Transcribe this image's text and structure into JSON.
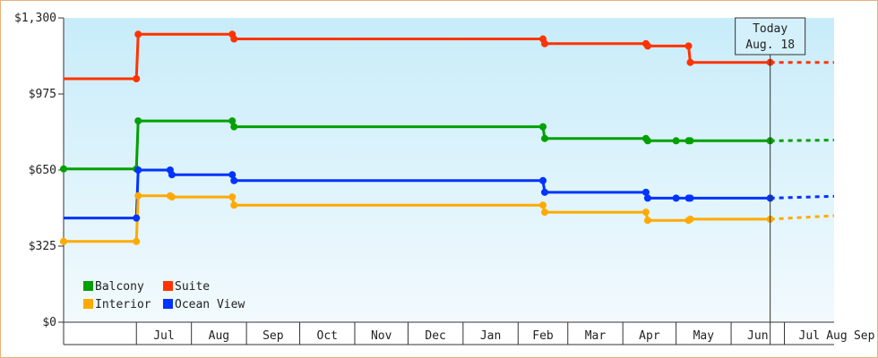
{
  "chart_data": {
    "type": "line",
    "step": true,
    "y_ticks": [
      {
        "value": 0,
        "label": "$0"
      },
      {
        "value": 325,
        "label": "$325"
      },
      {
        "value": 650,
        "label": "$650"
      },
      {
        "value": 975,
        "label": "$975"
      },
      {
        "value": 1300,
        "label": "$1,300"
      }
    ],
    "ylim": [
      0,
      1300
    ],
    "x_months": [
      "Jul",
      "Aug",
      "Sep",
      "Oct",
      "Nov",
      "Dec",
      "Jan",
      "Feb",
      "Mar",
      "Apr",
      "May",
      "Jun",
      "Jul",
      "Aug",
      "Sep"
    ],
    "xlim_days": [
      -45,
      389
    ],
    "today": {
      "line1": "Today",
      "line2": "Aug. 18",
      "day": 353
    },
    "legend": {
      "placement": "bottom-left"
    },
    "series": [
      {
        "name": "Suite",
        "color": "#ff3300",
        "points": [
          [
            -45,
            1040
          ],
          [
            -4,
            1040
          ],
          [
            -3,
            1230
          ],
          [
            50,
            1230
          ],
          [
            51,
            1210
          ],
          [
            225,
            1210
          ],
          [
            226,
            1190
          ],
          [
            283,
            1190
          ],
          [
            284,
            1180
          ],
          [
            307,
            1180
          ],
          [
            308,
            1110
          ],
          [
            353,
            1110
          ]
        ],
        "forecast": [
          [
            353,
            1110
          ],
          [
            389,
            1110
          ]
        ]
      },
      {
        "name": "Balcony",
        "color": "#00a000",
        "points": [
          [
            -45,
            655
          ],
          [
            -4,
            655
          ],
          [
            -3,
            860
          ],
          [
            50,
            860
          ],
          [
            51,
            835
          ],
          [
            225,
            835
          ],
          [
            226,
            785
          ],
          [
            283,
            785
          ],
          [
            284,
            775
          ],
          [
            307,
            775
          ],
          [
            308,
            775
          ],
          [
            353,
            775
          ]
        ],
        "forecast": [
          [
            353,
            775
          ],
          [
            389,
            778
          ]
        ]
      },
      {
        "name": "Ocean View",
        "color": "#0033ff",
        "points": [
          [
            -45,
            445
          ],
          [
            -4,
            445
          ],
          [
            -3,
            650
          ],
          [
            15,
            650
          ],
          [
            16,
            630
          ],
          [
            50,
            630
          ],
          [
            51,
            605
          ],
          [
            225,
            605
          ],
          [
            226,
            555
          ],
          [
            283,
            555
          ],
          [
            284,
            530
          ],
          [
            307,
            530
          ],
          [
            308,
            530
          ],
          [
            353,
            530
          ]
        ],
        "forecast": [
          [
            353,
            530
          ],
          [
            389,
            538
          ]
        ]
      },
      {
        "name": "Interior",
        "color": "#ffaa00",
        "points": [
          [
            -45,
            345
          ],
          [
            -4,
            345
          ],
          [
            -3,
            540
          ],
          [
            15,
            540
          ],
          [
            16,
            535
          ],
          [
            50,
            535
          ],
          [
            51,
            500
          ],
          [
            225,
            500
          ],
          [
            226,
            470
          ],
          [
            283,
            470
          ],
          [
            284,
            435
          ],
          [
            307,
            435
          ],
          [
            308,
            440
          ],
          [
            353,
            440
          ]
        ],
        "forecast": [
          [
            353,
            440
          ],
          [
            389,
            455
          ]
        ]
      }
    ],
    "markers": {
      "Suite": [
        -4,
        -3,
        50,
        51,
        225,
        226,
        283,
        284,
        307,
        308,
        353
      ],
      "Balcony": [
        -45,
        -4,
        -3,
        50,
        51,
        225,
        226,
        283,
        284,
        300,
        307,
        308,
        353
      ],
      "Ocean View": [
        -4,
        -3,
        15,
        16,
        50,
        51,
        225,
        226,
        283,
        284,
        300,
        307,
        308,
        353
      ],
      "Interior": [
        -45,
        -4,
        -3,
        15,
        16,
        50,
        51,
        225,
        226,
        283,
        284,
        307,
        308,
        353
      ]
    },
    "legend_rows": [
      [
        "Balcony",
        "Suite"
      ],
      [
        "Interior",
        "Ocean View"
      ]
    ]
  }
}
